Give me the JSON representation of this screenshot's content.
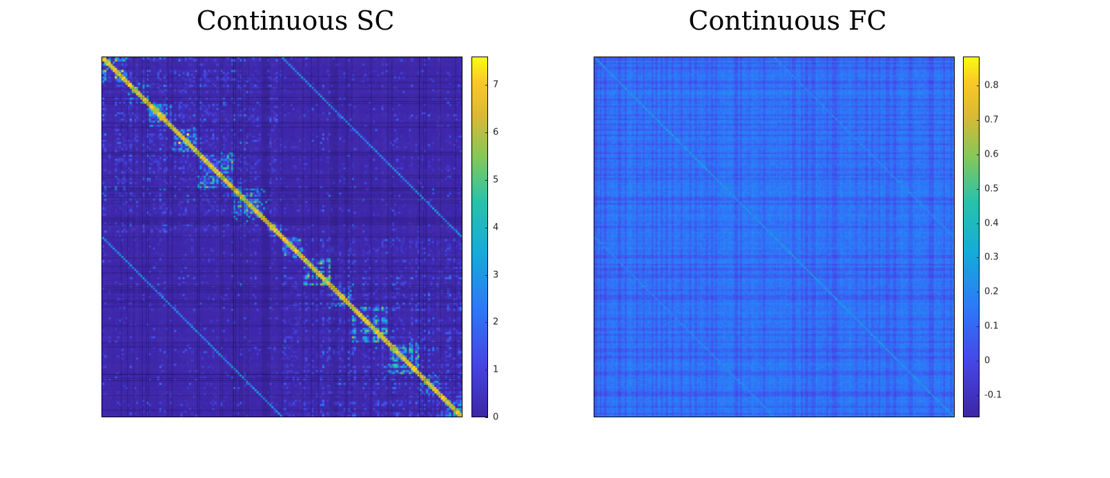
{
  "chart_data": [
    {
      "type": "heatmap",
      "title": "Continuous SC",
      "matrix_size": "square connectivity matrix",
      "colormap": "parula",
      "clim": [
        0,
        7.6
      ],
      "colorbar_ticks": [
        "0",
        "1",
        "2",
        "3",
        "4",
        "5",
        "6",
        "7"
      ],
      "colorbar_values": [
        0,
        1,
        2,
        3,
        4,
        5,
        6,
        7
      ],
      "block_structure": "two hemispheric diagonal blocks with strong intra-module clusters",
      "grid": true
    },
    {
      "type": "heatmap",
      "title": "Continuous FC",
      "matrix_size": "square connectivity matrix",
      "colormap": "parula",
      "clim": [
        -0.165,
        0.885
      ],
      "colorbar_ticks": [
        "-0.1",
        "0",
        "0.1",
        "0.2",
        "0.3",
        "0.4",
        "0.5",
        "0.6",
        "0.7",
        "0.8"
      ],
      "colorbar_values": [
        -0.1,
        0,
        0.1,
        0.2,
        0.3,
        0.4,
        0.5,
        0.6,
        0.7,
        0.8
      ],
      "block_structure": "mostly low uniform correlations with faint diagonal",
      "grid": false
    }
  ]
}
